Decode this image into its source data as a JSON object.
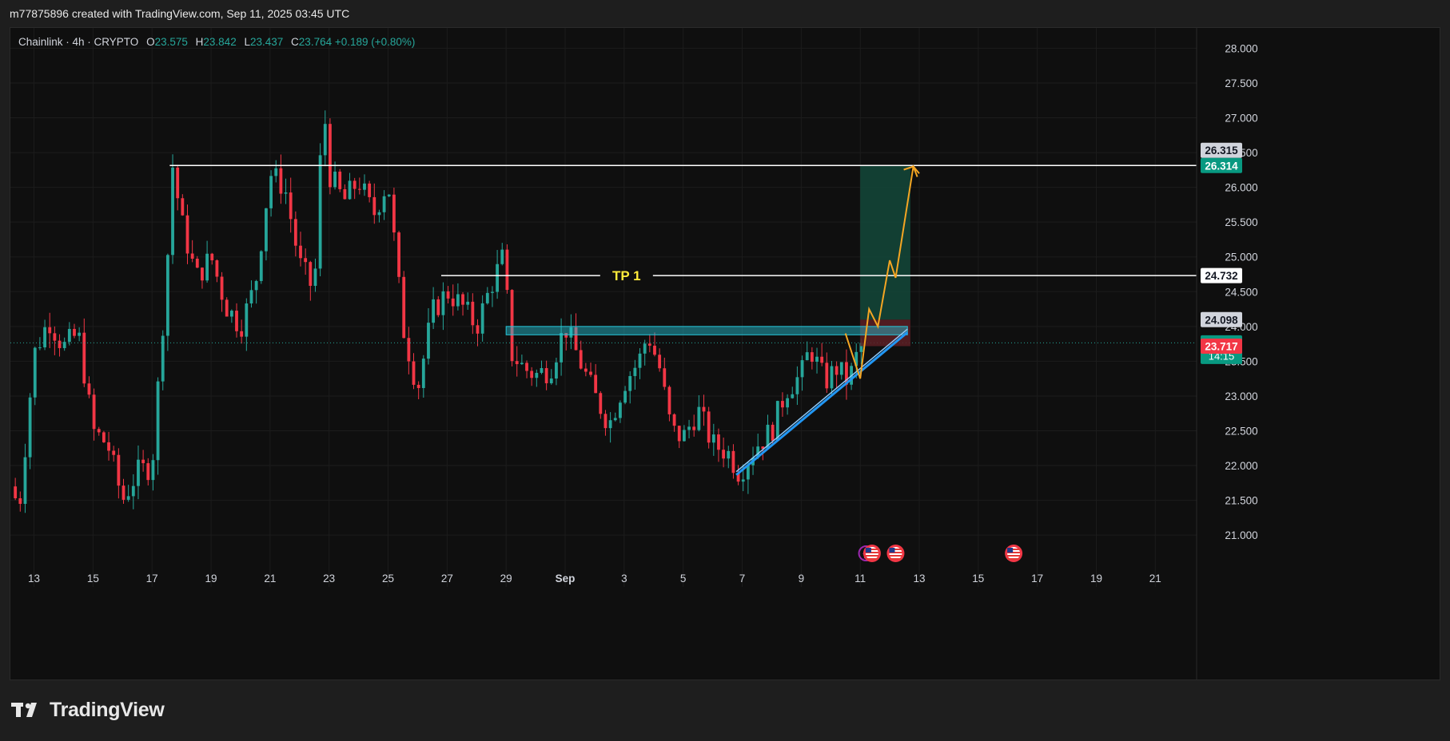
{
  "header": {
    "caption": "m77875896 created with TradingView.com, Sep 11, 2025 03:45 UTC"
  },
  "legend": {
    "symbol": "Chainlink · 4h · CRYPTO",
    "o_label": "O",
    "o_value": "23.575",
    "h_label": "H",
    "h_value": "23.842",
    "l_label": "L",
    "l_value": "23.437",
    "c_label": "C",
    "c_value": "23.764",
    "change": "+0.189 (+0.80%)"
  },
  "footer": {
    "brand": "TradingView"
  },
  "colors": {
    "up": "#26a69a",
    "down": "#f23645",
    "background": "#0f0f0f",
    "grid": "#1c1c1c",
    "zone": "#26c6da",
    "trendline": "#2196f3",
    "projection": "#f5a623",
    "target_box": "#134b3c",
    "stop_box": "#5c1e24",
    "tp_label": "#ffeb3b"
  },
  "chart_data": {
    "type": "candlestick",
    "symbol": "Chainlink",
    "interval": "4h",
    "y_axis": {
      "min": 20.6,
      "max": 28.2,
      "ticks": [
        "21.000",
        "21.500",
        "22.000",
        "22.500",
        "23.000",
        "23.500",
        "24.000",
        "24.500",
        "25.000",
        "25.500",
        "26.000",
        "26.500",
        "27.000",
        "27.500",
        "28.000"
      ]
    },
    "x_axis": {
      "ticks": [
        {
          "label": "13",
          "day": 13
        },
        {
          "label": "15",
          "day": 15
        },
        {
          "label": "17",
          "day": 17
        },
        {
          "label": "19",
          "day": 19
        },
        {
          "label": "21",
          "day": 21
        },
        {
          "label": "23",
          "day": 23
        },
        {
          "label": "25",
          "day": 25
        },
        {
          "label": "27",
          "day": 27
        },
        {
          "label": "29",
          "day": 29
        },
        {
          "label": "Sep",
          "day": 31
        },
        {
          "label": "3",
          "day": 33
        },
        {
          "label": "5",
          "day": 35
        },
        {
          "label": "7",
          "day": 37
        },
        {
          "label": "9",
          "day": 39
        },
        {
          "label": "11",
          "day": 41
        },
        {
          "label": "13",
          "day": 43
        },
        {
          "label": "15",
          "day": 45
        },
        {
          "label": "17",
          "day": 47
        },
        {
          "label": "19",
          "day": 49
        },
        {
          "label": "21",
          "day": 51
        }
      ],
      "range_days": [
        12.2,
        52.4
      ]
    },
    "price_path": [
      [
        12.2,
        21.7
      ],
      [
        12.5,
        21.4
      ],
      [
        13.0,
        23.6
      ],
      [
        13.5,
        24.1
      ],
      [
        14.0,
        23.7
      ],
      [
        14.5,
        23.9
      ],
      [
        15.0,
        22.5
      ],
      [
        15.5,
        22.3
      ],
      [
        16.0,
        21.5
      ],
      [
        16.5,
        21.9
      ],
      [
        17.0,
        22.0
      ],
      [
        17.5,
        24.8
      ],
      [
        17.7,
        26.3
      ],
      [
        18.0,
        25.5
      ],
      [
        18.5,
        24.7
      ],
      [
        19.0,
        25.0
      ],
      [
        19.5,
        24.3
      ],
      [
        20.0,
        24.0
      ],
      [
        20.5,
        24.6
      ],
      [
        21.0,
        26.2
      ],
      [
        21.5,
        26.0
      ],
      [
        22.0,
        24.9
      ],
      [
        22.5,
        24.5
      ],
      [
        22.8,
        27.3
      ],
      [
        23.0,
        26.2
      ],
      [
        23.5,
        25.8
      ],
      [
        24.0,
        26.1
      ],
      [
        24.5,
        25.6
      ],
      [
        25.0,
        26.1
      ],
      [
        25.5,
        24.0
      ],
      [
        26.0,
        23.1
      ],
      [
        26.5,
        24.2
      ],
      [
        27.0,
        24.5
      ],
      [
        27.5,
        24.3
      ],
      [
        28.0,
        24.0
      ],
      [
        28.5,
        24.6
      ],
      [
        28.9,
        25.0
      ],
      [
        29.2,
        23.6
      ],
      [
        29.6,
        23.4
      ],
      [
        30.0,
        23.3
      ],
      [
        30.5,
        23.4
      ],
      [
        31.0,
        24.0
      ],
      [
        31.5,
        23.5
      ],
      [
        32.0,
        23.0
      ],
      [
        32.5,
        22.6
      ],
      [
        33.0,
        23.2
      ],
      [
        33.5,
        23.5
      ],
      [
        33.8,
        23.9
      ],
      [
        34.2,
        23.4
      ],
      [
        34.6,
        22.5
      ],
      [
        35.0,
        22.4
      ],
      [
        35.5,
        22.8
      ],
      [
        36.0,
        22.3
      ],
      [
        36.5,
        22.2
      ],
      [
        36.9,
        21.9
      ],
      [
        37.5,
        22.3
      ],
      [
        38.0,
        22.5
      ],
      [
        38.5,
        23.1
      ],
      [
        39.0,
        23.3
      ],
      [
        39.3,
        23.7
      ],
      [
        39.8,
        23.2
      ],
      [
        40.2,
        23.4
      ],
      [
        40.6,
        23.2
      ],
      [
        40.9,
        23.6
      ],
      [
        41.05,
        23.76
      ]
    ],
    "reported_ohlc": {
      "open": 23.575,
      "high": 23.842,
      "low": 23.437,
      "close": 23.764,
      "change": 0.189,
      "change_pct": 0.8
    },
    "horizontal_lines": [
      {
        "price": 26.314,
        "start_day": 17.6,
        "end_day": 52.4
      },
      {
        "price": 24.732,
        "start_day": 26.8,
        "end_day": 52.4,
        "label": "TP 1"
      }
    ],
    "resistance_zone": {
      "top": 24.0,
      "bottom": 23.88,
      "start_day": 29.0,
      "end_day": 42.6
    },
    "trendline": {
      "from": [
        36.8,
        21.9
      ],
      "to": [
        42.6,
        23.95
      ]
    },
    "position": {
      "entry": 24.098,
      "target": 26.315,
      "stop": 23.717,
      "start_day": 41.0,
      "end_day": 42.7
    },
    "projection_path": [
      [
        40.5,
        23.9
      ],
      [
        41.0,
        23.25
      ],
      [
        41.3,
        24.25
      ],
      [
        41.6,
        24.0
      ],
      [
        42.0,
        24.95
      ],
      [
        42.2,
        24.7
      ],
      [
        42.8,
        26.3
      ],
      [
        43.0,
        26.2
      ]
    ],
    "price_labels": [
      {
        "text": "26.315",
        "price": 26.315,
        "style": "gray"
      },
      {
        "text": "26.314",
        "price": 26.314,
        "style": "green"
      },
      {
        "text": "24.732",
        "price": 24.732,
        "style": "white"
      },
      {
        "text": "24.098",
        "price": 24.098,
        "style": "gray"
      },
      {
        "text": "23.764",
        "price": 23.764,
        "style": "green",
        "subtext": "14:15"
      },
      {
        "text": "23.717",
        "price": 23.717,
        "style": "red"
      }
    ],
    "event_icons": [
      {
        "day": 41.2,
        "type": "lightning"
      },
      {
        "day": 41.4,
        "type": "us-flag"
      },
      {
        "day": 42.2,
        "type": "us-flag"
      },
      {
        "day": 46.2,
        "type": "us-flag"
      }
    ]
  }
}
